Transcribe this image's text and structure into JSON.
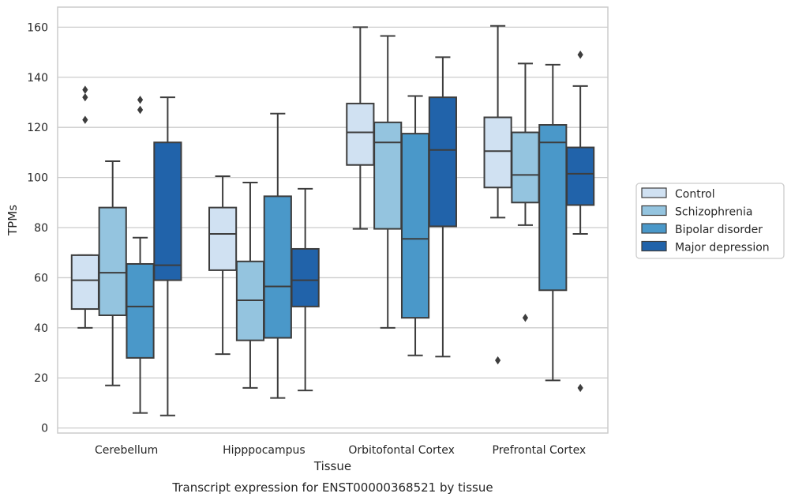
{
  "chart_data": {
    "type": "box",
    "caption": "Transcript expression for ENST00000368521 by tissue",
    "xlabel": "Tissue",
    "ylabel": "TPMs",
    "ylim": [
      -2,
      168
    ],
    "yticks": [
      0,
      20,
      40,
      60,
      80,
      100,
      120,
      140,
      160
    ],
    "grid": "horizontal",
    "legend_position": "right",
    "categories": [
      "Cerebellum",
      "Hipppocampus",
      "Orbitofontal Cortex",
      "Prefrontal Cortex"
    ],
    "series": [
      {
        "name": "Control",
        "color": "#d0e1f2",
        "boxes": [
          {
            "whisker_low": 40,
            "q1": 47.5,
            "median": 59,
            "q3": 69,
            "whisker_high": 69,
            "outliers": [
              123,
              132,
              135
            ]
          },
          {
            "whisker_low": 29.5,
            "q1": 63,
            "median": 77.5,
            "q3": 88,
            "whisker_high": 100.5,
            "outliers": []
          },
          {
            "whisker_low": 79.5,
            "q1": 105,
            "median": 118,
            "q3": 129.5,
            "whisker_high": 160,
            "outliers": []
          },
          {
            "whisker_low": 84,
            "q1": 96,
            "median": 110.5,
            "q3": 124,
            "whisker_high": 160.5,
            "outliers": [
              27
            ]
          }
        ]
      },
      {
        "name": "Schizophrenia",
        "color": "#94c4df",
        "boxes": [
          {
            "whisker_low": 17,
            "q1": 45,
            "median": 62,
            "q3": 88,
            "whisker_high": 106.5,
            "outliers": []
          },
          {
            "whisker_low": 16,
            "q1": 35,
            "median": 51,
            "q3": 66.5,
            "whisker_high": 98,
            "outliers": []
          },
          {
            "whisker_low": 40,
            "q1": 79.5,
            "median": 114,
            "q3": 122,
            "whisker_high": 156.5,
            "outliers": []
          },
          {
            "whisker_low": 81,
            "q1": 90,
            "median": 101,
            "q3": 118,
            "whisker_high": 145.5,
            "outliers": [
              44
            ]
          }
        ]
      },
      {
        "name": "Bipolar disorder",
        "color": "#4a98c9",
        "boxes": [
          {
            "whisker_low": 6,
            "q1": 28,
            "median": 48.5,
            "q3": 65.5,
            "whisker_high": 76,
            "outliers": [
              127,
              131
            ]
          },
          {
            "whisker_low": 12,
            "q1": 36,
            "median": 56.5,
            "q3": 92.5,
            "whisker_high": 125.5,
            "outliers": []
          },
          {
            "whisker_low": 29,
            "q1": 44,
            "median": 75.5,
            "q3": 117.5,
            "whisker_high": 132.5,
            "outliers": []
          },
          {
            "whisker_low": 19,
            "q1": 55,
            "median": 114,
            "q3": 121,
            "whisker_high": 145,
            "outliers": []
          }
        ]
      },
      {
        "name": "Major depression",
        "color": "#2163aa",
        "boxes": [
          {
            "whisker_low": 5,
            "q1": 59,
            "median": 65,
            "q3": 114,
            "whisker_high": 132,
            "outliers": []
          },
          {
            "whisker_low": 15,
            "q1": 48.5,
            "median": 59,
            "q3": 71.5,
            "whisker_high": 95.5,
            "outliers": []
          },
          {
            "whisker_low": 28.5,
            "q1": 80.5,
            "median": 111,
            "q3": 132,
            "whisker_high": 148,
            "outliers": []
          },
          {
            "whisker_low": 77.5,
            "q1": 89,
            "median": 101.5,
            "q3": 112,
            "whisker_high": 136.5,
            "outliers": [
              16,
              149
            ]
          }
        ]
      }
    ]
  }
}
